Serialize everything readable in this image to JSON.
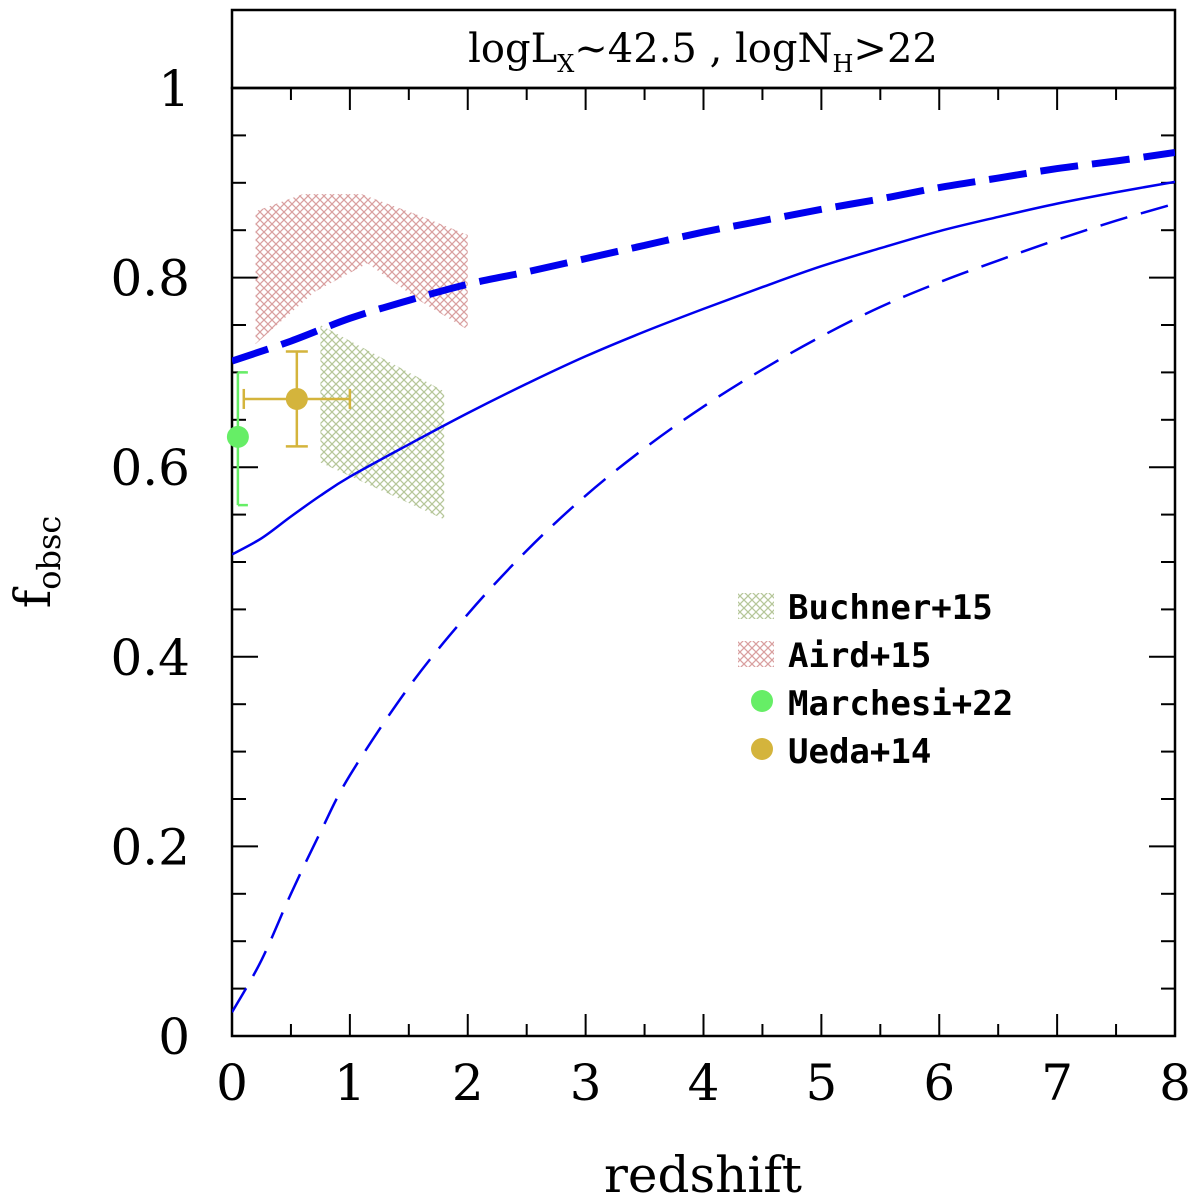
{
  "chart_data": {
    "type": "line",
    "title": "logL",
    "title_sub": "X",
    "title_mid": "~42.5 , logN",
    "title_sub2": "H",
    "title_end": ">22",
    "xlabel": "redshift",
    "ylabel": "f",
    "ylabel_sub": "obsc",
    "xlim": [
      0,
      8
    ],
    "ylim": [
      0,
      1
    ],
    "x_ticks": [
      0,
      1,
      2,
      3,
      4,
      5,
      6,
      7,
      8
    ],
    "x_tick_labels": [
      "0",
      "1",
      "2",
      "3",
      "4",
      "5",
      "6",
      "7",
      "8"
    ],
    "y_ticks": [
      0,
      0.2,
      0.4,
      0.6,
      0.8,
      1
    ],
    "y_tick_labels": [
      "0",
      "0.2",
      "0.4",
      "0.6",
      "0.8",
      "1"
    ],
    "series": [
      {
        "name": "model thick dashed",
        "style": "thick-dashed",
        "color": "#0000ee",
        "x": [
          0,
          0.5,
          1,
          1.5,
          2,
          2.5,
          3,
          3.5,
          4,
          4.5,
          5,
          5.5,
          6,
          6.5,
          7,
          7.5,
          8
        ],
        "y": [
          0.712,
          0.733,
          0.757,
          0.776,
          0.793,
          0.806,
          0.82,
          0.834,
          0.848,
          0.86,
          0.872,
          0.883,
          0.895,
          0.905,
          0.915,
          0.923,
          0.932
        ]
      },
      {
        "name": "model solid",
        "style": "solid",
        "color": "#0000ee",
        "x": [
          0,
          0.25,
          0.5,
          0.75,
          1,
          1.5,
          2,
          2.5,
          3,
          3.5,
          4,
          4.5,
          5,
          5.5,
          6,
          6.5,
          7,
          7.5,
          8
        ],
        "y": [
          0.508,
          0.525,
          0.548,
          0.57,
          0.59,
          0.624,
          0.657,
          0.688,
          0.717,
          0.743,
          0.767,
          0.79,
          0.812,
          0.831,
          0.849,
          0.864,
          0.878,
          0.89,
          0.901
        ]
      },
      {
        "name": "model thin dashed",
        "style": "thin-dashed",
        "color": "#0000ee",
        "x": [
          0,
          0.25,
          0.5,
          0.75,
          1,
          1.5,
          2,
          2.5,
          3,
          3.5,
          4,
          4.5,
          5,
          5.5,
          6,
          6.5,
          7,
          7.5,
          8
        ],
        "y": [
          0.025,
          0.08,
          0.15,
          0.215,
          0.275,
          0.368,
          0.445,
          0.512,
          0.57,
          0.62,
          0.664,
          0.703,
          0.738,
          0.769,
          0.795,
          0.818,
          0.84,
          0.86,
          0.878
        ]
      }
    ],
    "bands": [
      {
        "name": "Buchner+15",
        "color": "#b6c79a",
        "polygon": [
          [
            0.75,
            0.75
          ],
          [
            1.8,
            0.68
          ],
          [
            1.8,
            0.545
          ],
          [
            0.75,
            0.605
          ]
        ]
      },
      {
        "name": "Aird+15",
        "color": "#d9a0a0",
        "polygon": [
          [
            0.2,
            0.87
          ],
          [
            0.6,
            0.888
          ],
          [
            1.1,
            0.888
          ],
          [
            1.6,
            0.865
          ],
          [
            2.0,
            0.845
          ],
          [
            2.0,
            0.745
          ],
          [
            1.6,
            0.775
          ],
          [
            1.15,
            0.815
          ],
          [
            0.7,
            0.785
          ],
          [
            0.2,
            0.73
          ]
        ]
      }
    ],
    "points": [
      {
        "name": "Marchesi+22",
        "color": "#66ee66",
        "x": 0.05,
        "y": 0.632,
        "yerr": [
          0.56,
          0.7
        ],
        "xerr": null
      },
      {
        "name": "Ueda+14",
        "color": "#d4b43c",
        "x": 0.55,
        "y": 0.672,
        "yerr": [
          0.622,
          0.722
        ],
        "xerr": [
          0.1,
          1.0
        ]
      }
    ],
    "legend": {
      "position": "right-middle",
      "entries": [
        {
          "label": "Buchner+15",
          "kind": "hatch",
          "color": "#b6c79a"
        },
        {
          "label": "Aird+15",
          "kind": "hatch",
          "color": "#d9a0a0"
        },
        {
          "label": "Marchesi+22",
          "kind": "dot",
          "color": "#66ee66"
        },
        {
          "label": "Ueda+14",
          "kind": "dot",
          "color": "#d4b43c"
        }
      ]
    }
  }
}
